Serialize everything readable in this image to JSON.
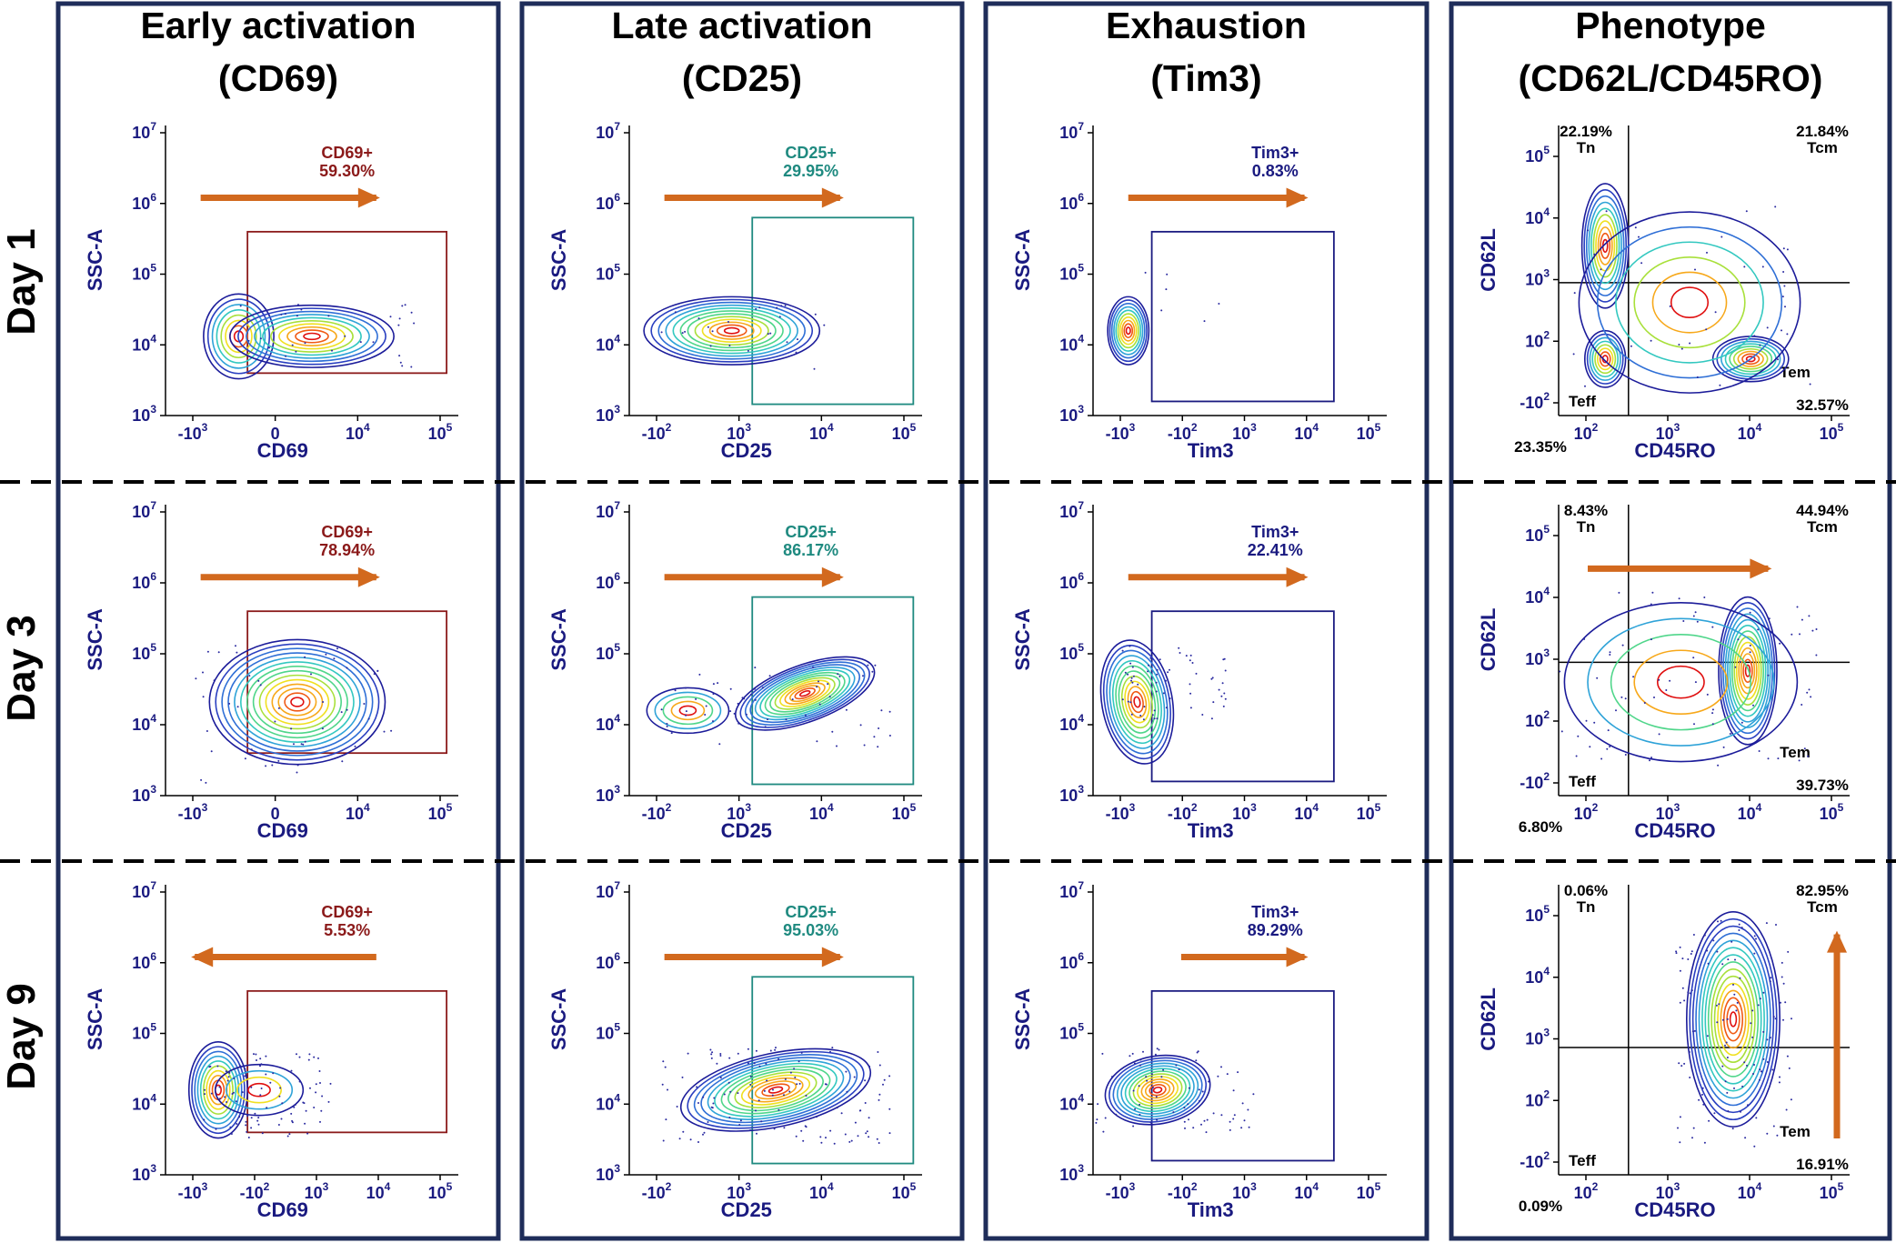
{
  "columns": [
    {
      "title_line1": "Early activation",
      "title_line2": "(CD69)"
    },
    {
      "title_line1": "Late activation",
      "title_line2": "(CD25)"
    },
    {
      "title_line1": "Exhaustion",
      "title_line2": "(Tim3)"
    },
    {
      "title_line1": "Phenotype",
      "title_line2": "(CD62L/CD45RO)"
    }
  ],
  "rows": [
    "Day 1",
    "Day 3",
    "Day 9"
  ],
  "colors": {
    "frame": "#1f2d5a",
    "axis_text": "#1a1a80",
    "arrow": "#d2691e",
    "cd69_gate": "#8b1a1a",
    "cd25_gate": "#1f8a80",
    "tim3_gate": "#1a1a80",
    "contour_low": "#1a1aa0",
    "contour_high": "#e01010"
  },
  "y_ticks_ssc": [
    "10^3",
    "10^4",
    "10^5",
    "10^6",
    "10^7"
  ],
  "y_ticks_cd62l": [
    "-10^2",
    "10^2",
    "10^3",
    "10^4",
    "10^5"
  ],
  "chart_data": [
    {
      "type": "contour",
      "row": "Day 1",
      "marker": "CD69",
      "xlabel": "CD69",
      "ylabel": "SSC-A",
      "x_ticks": [
        "-10^3",
        "0",
        "10^4",
        "10^5"
      ],
      "gate_label": "CD69+",
      "gate_value": "59.30%",
      "arrow": "right"
    },
    {
      "type": "contour",
      "row": "Day 1",
      "marker": "CD25",
      "xlabel": "CD25",
      "ylabel": "SSC-A",
      "x_ticks": [
        "-10^2",
        "10^3",
        "10^4",
        "10^5"
      ],
      "gate_label": "CD25+",
      "gate_value": "29.95%",
      "arrow": "right"
    },
    {
      "type": "contour",
      "row": "Day 1",
      "marker": "Tim3",
      "xlabel": "Tim3",
      "ylabel": "SSC-A",
      "x_ticks": [
        "-10^3",
        "-10^2",
        "10^3",
        "10^4",
        "10^5"
      ],
      "gate_label": "Tim3+",
      "gate_value": "0.83%",
      "arrow": "right"
    },
    {
      "type": "contour",
      "row": "Day 1",
      "marker": "Phenotype",
      "xlabel": "CD45RO",
      "ylabel": "CD62L",
      "x_ticks": [
        "10^2",
        "10^3",
        "10^4",
        "10^5"
      ],
      "quadrants": {
        "Tn": "22.19%",
        "Tcm": "21.84%",
        "Tem": "32.57%",
        "Teff": "23.35%"
      },
      "arrow": "none"
    },
    {
      "type": "contour",
      "row": "Day 3",
      "marker": "CD69",
      "xlabel": "CD69",
      "ylabel": "SSC-A",
      "x_ticks": [
        "-10^3",
        "0",
        "10^4",
        "10^5"
      ],
      "gate_label": "CD69+",
      "gate_value": "78.94%",
      "arrow": "right"
    },
    {
      "type": "contour",
      "row": "Day 3",
      "marker": "CD25",
      "xlabel": "CD25",
      "ylabel": "SSC-A",
      "x_ticks": [
        "-10^2",
        "10^3",
        "10^4",
        "10^5"
      ],
      "gate_label": "CD25+",
      "gate_value": "86.17%",
      "arrow": "right"
    },
    {
      "type": "contour",
      "row": "Day 3",
      "marker": "Tim3",
      "xlabel": "Tim3",
      "ylabel": "SSC-A",
      "x_ticks": [
        "-10^3",
        "-10^2",
        "10^3",
        "10^4",
        "10^5"
      ],
      "gate_label": "Tim3+",
      "gate_value": "22.41%",
      "arrow": "right"
    },
    {
      "type": "contour",
      "row": "Day 3",
      "marker": "Phenotype",
      "xlabel": "CD45RO",
      "ylabel": "CD62L",
      "x_ticks": [
        "10^2",
        "10^3",
        "10^4",
        "10^5"
      ],
      "quadrants": {
        "Tn": "8.43%",
        "Tcm": "44.94%",
        "Tem": "39.73%",
        "Teff": "6.80%"
      },
      "arrow": "right"
    },
    {
      "type": "contour",
      "row": "Day 9",
      "marker": "CD69",
      "xlabel": "CD69",
      "ylabel": "SSC-A",
      "x_ticks": [
        "-10^3",
        "-10^2",
        "10^3",
        "10^4",
        "10^5"
      ],
      "gate_label": "CD69+",
      "gate_value": "5.53%",
      "arrow": "left"
    },
    {
      "type": "contour",
      "row": "Day 9",
      "marker": "CD25",
      "xlabel": "CD25",
      "ylabel": "SSC-A",
      "x_ticks": [
        "-10^2",
        "10^3",
        "10^4",
        "10^5"
      ],
      "gate_label": "CD25+",
      "gate_value": "95.03%",
      "arrow": "right"
    },
    {
      "type": "contour",
      "row": "Day 9",
      "marker": "Tim3",
      "xlabel": "Tim3",
      "ylabel": "SSC-A",
      "x_ticks": [
        "-10^3",
        "-10^2",
        "10^3",
        "10^4",
        "10^5"
      ],
      "gate_label": "Tim3+",
      "gate_value": "89.29%",
      "arrow": "right"
    },
    {
      "type": "contour",
      "row": "Day 9",
      "marker": "Phenotype",
      "xlabel": "CD45RO",
      "ylabel": "CD62L",
      "x_ticks": [
        "10^2",
        "10^3",
        "10^4",
        "10^5"
      ],
      "quadrants": {
        "Tn": "0.06%",
        "Tcm": "82.95%",
        "Tem": "16.91%",
        "Teff": "0.09%"
      },
      "arrow": "up"
    }
  ]
}
